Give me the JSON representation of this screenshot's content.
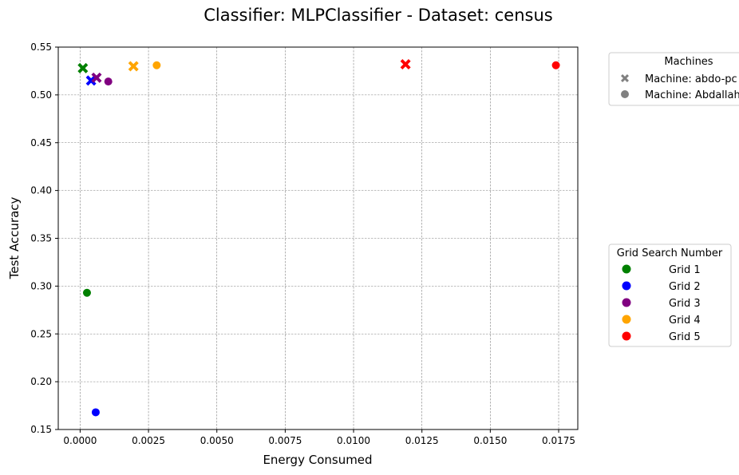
{
  "chart_data": {
    "type": "scatter",
    "title": "Classifier: MLPClassifier - Dataset: census",
    "xlabel": "Energy Consumed",
    "ylabel": "Test Accuracy",
    "xlim": [
      -0.0008,
      0.0182
    ],
    "ylim": [
      0.15,
      0.55
    ],
    "xticks": [
      0.0,
      0.0025,
      0.005,
      0.0075,
      0.01,
      0.0125,
      0.015,
      0.0175
    ],
    "xtick_labels": [
      "0.0000",
      "0.0025",
      "0.0050",
      "0.0075",
      "0.0100",
      "0.0125",
      "0.0150",
      "0.0175"
    ],
    "yticks": [
      0.15,
      0.2,
      0.25,
      0.3,
      0.35,
      0.4,
      0.45,
      0.5,
      0.55
    ],
    "ytick_labels": [
      "0.15",
      "0.20",
      "0.25",
      "0.30",
      "0.35",
      "0.40",
      "0.45",
      "0.50",
      "0.55"
    ],
    "grid": true,
    "marker_legend": {
      "title": "Machines",
      "placement": "upper-right-outside",
      "entries": [
        {
          "label": "Machine: abdo-pc",
          "marker": "x",
          "color": "#808080"
        },
        {
          "label": "Machine: Abdallah",
          "marker": "o",
          "color": "#808080"
        }
      ]
    },
    "color_legend": {
      "title": "Grid Search Number",
      "placement": "center-right-outside",
      "entries": [
        {
          "label": "Grid 1",
          "color": "#008000"
        },
        {
          "label": "Grid 2",
          "color": "#0000ff"
        },
        {
          "label": "Grid 3",
          "color": "#800080"
        },
        {
          "label": "Grid 4",
          "color": "#ffa500"
        },
        {
          "label": "Grid 5",
          "color": "#ff0000"
        }
      ]
    },
    "points": [
      {
        "grid": "Grid 1",
        "machine": "Machine: abdo-pc",
        "marker": "x",
        "x": 0.0001,
        "y": 0.528,
        "color": "#008000"
      },
      {
        "grid": "Grid 1",
        "machine": "Machine: Abdallah",
        "marker": "o",
        "x": 0.00025,
        "y": 0.293,
        "color": "#008000"
      },
      {
        "grid": "Grid 2",
        "machine": "Machine: abdo-pc",
        "marker": "x",
        "x": 0.0004,
        "y": 0.515,
        "color": "#0000ff"
      },
      {
        "grid": "Grid 2",
        "machine": "Machine: Abdallah",
        "marker": "o",
        "x": 0.00057,
        "y": 0.168,
        "color": "#0000ff"
      },
      {
        "grid": "Grid 3",
        "machine": "Machine: abdo-pc",
        "marker": "x",
        "x": 0.0006,
        "y": 0.518,
        "color": "#800080"
      },
      {
        "grid": "Grid 3",
        "machine": "Machine: Abdallah",
        "marker": "o",
        "x": 0.00103,
        "y": 0.514,
        "color": "#800080"
      },
      {
        "grid": "Grid 4",
        "machine": "Machine: abdo-pc",
        "marker": "x",
        "x": 0.00195,
        "y": 0.53,
        "color": "#ffa500"
      },
      {
        "grid": "Grid 4",
        "machine": "Machine: Abdallah",
        "marker": "o",
        "x": 0.0028,
        "y": 0.531,
        "color": "#ffa500"
      },
      {
        "grid": "Grid 5",
        "machine": "Machine: abdo-pc",
        "marker": "x",
        "x": 0.0119,
        "y": 0.532,
        "color": "#ff0000"
      },
      {
        "grid": "Grid 5",
        "machine": "Machine: Abdallah",
        "marker": "o",
        "x": 0.0174,
        "y": 0.531,
        "color": "#ff0000"
      }
    ]
  }
}
